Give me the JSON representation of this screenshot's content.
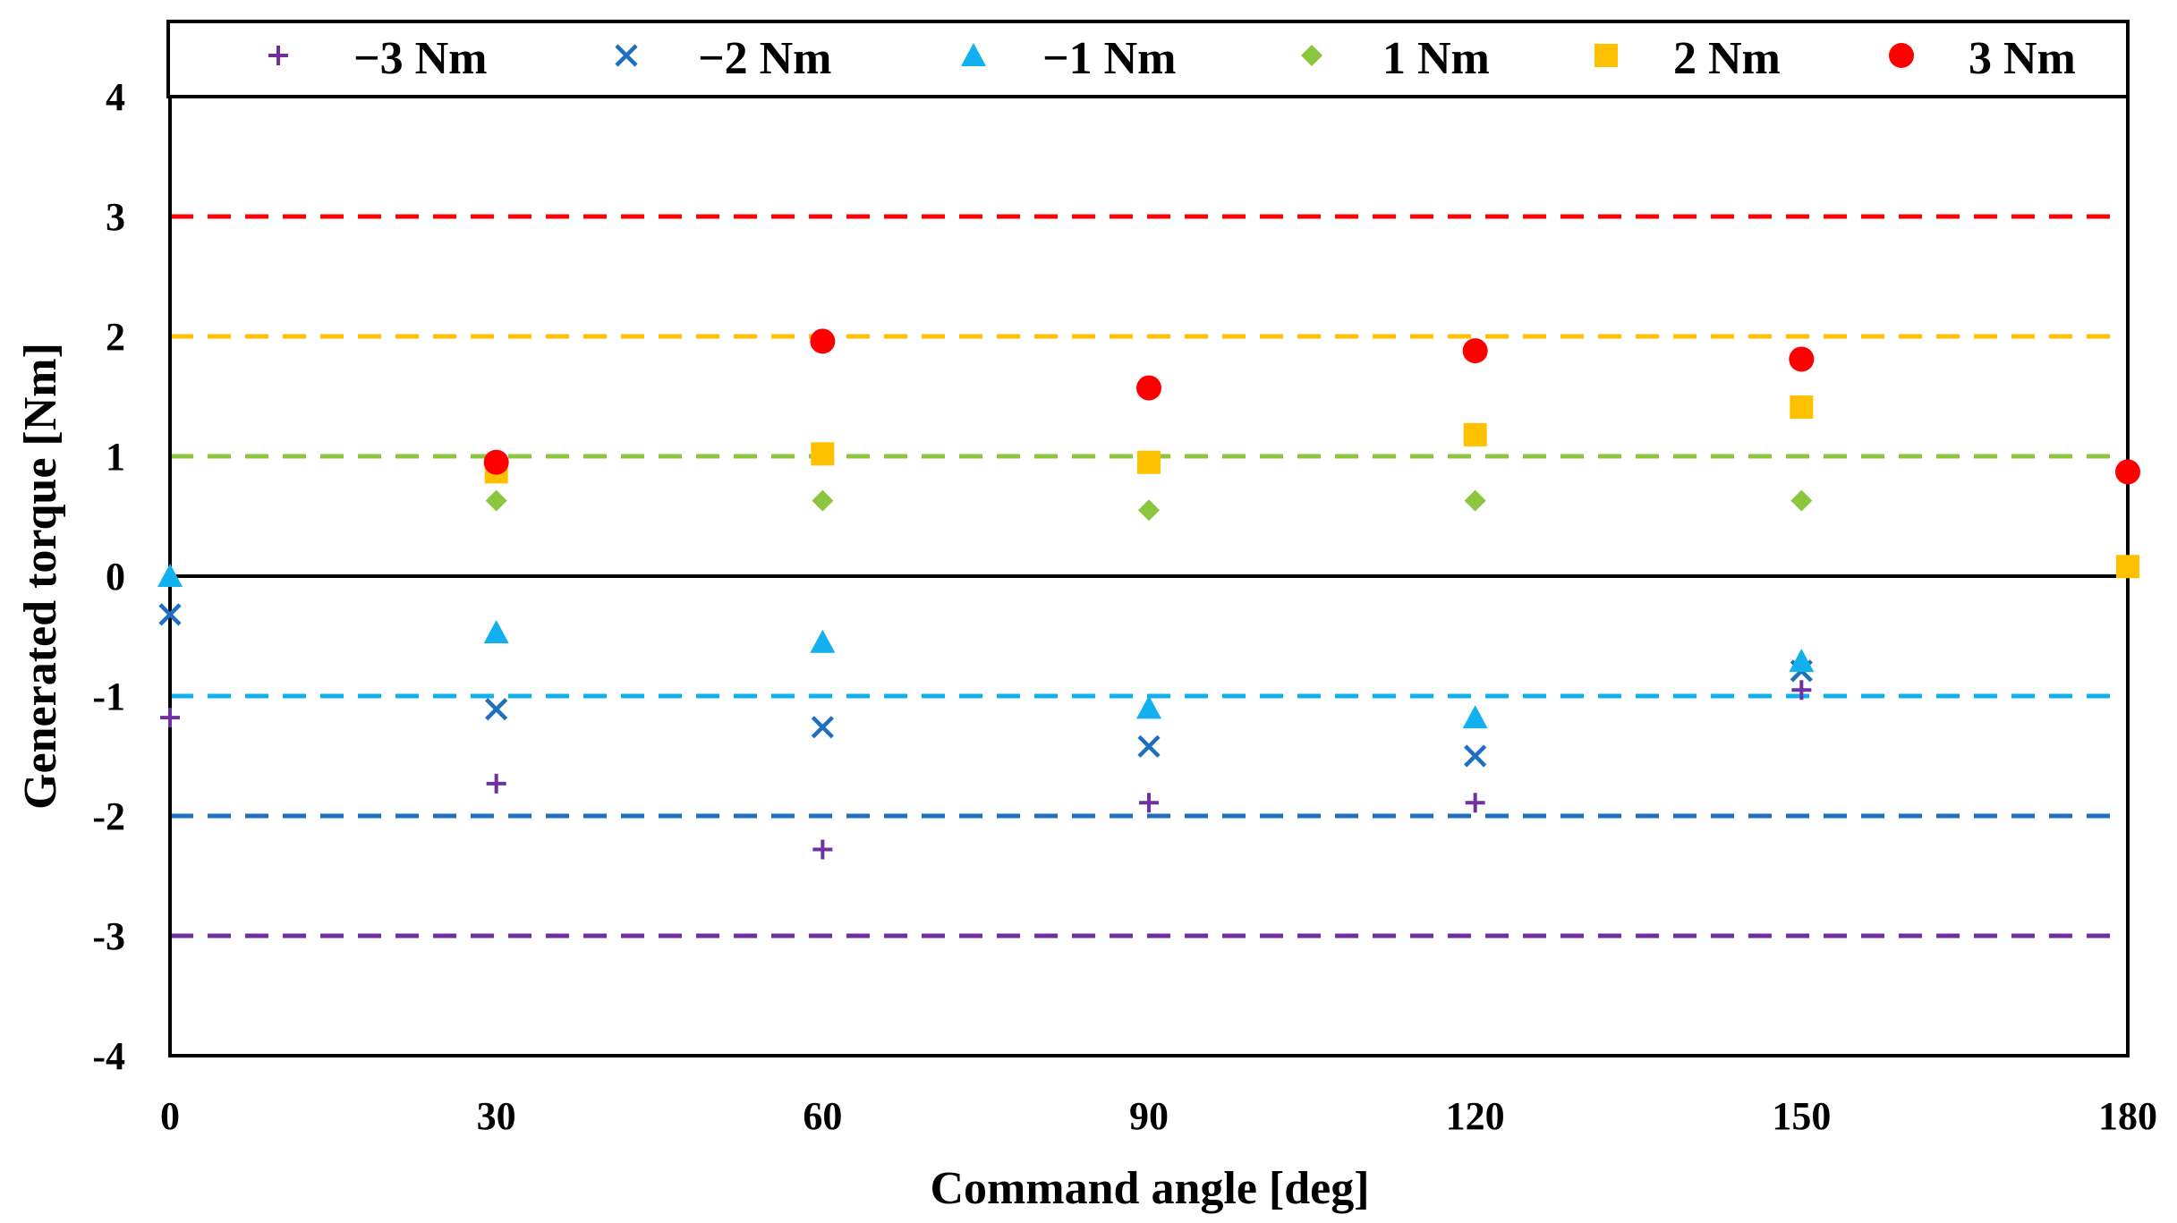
{
  "chart_data": {
    "type": "scatter",
    "title": "",
    "xlabel": "Command angle [deg]",
    "ylabel": "Generated torque [Nm]",
    "xlim": [
      0,
      180
    ],
    "ylim": [
      -4,
      4
    ],
    "x_ticks": [
      0,
      30,
      60,
      90,
      120,
      150,
      180
    ],
    "y_ticks": [
      4,
      3,
      2,
      1,
      0,
      -1,
      -2,
      -3,
      -4
    ],
    "x_tick_labels": [
      "0",
      "30",
      "60",
      "90",
      "120",
      "150",
      "180"
    ],
    "y_tick_labels": [
      "4",
      "3",
      "2",
      "1",
      "0",
      "-1",
      "-2",
      "-3",
      "-4"
    ],
    "legend_position": "top",
    "series": [
      {
        "name": "−3 Nm",
        "marker": "plus",
        "color": "#7030a0",
        "reference": -3,
        "x": [
          0,
          30,
          60,
          90,
          120,
          150
        ],
        "y": [
          -1.18,
          -1.73,
          -2.28,
          -1.89,
          -1.89,
          -0.95
        ]
      },
      {
        "name": "−2 Nm",
        "marker": "x",
        "color": "#1f6fbf",
        "reference": -2,
        "x": [
          0,
          30,
          60,
          90,
          120,
          150
        ],
        "y": [
          -0.32,
          -1.11,
          -1.26,
          -1.42,
          -1.5,
          -0.79
        ]
      },
      {
        "name": "−1 Nm",
        "marker": "triangle",
        "color": "#12b0ee",
        "reference": -1,
        "x": [
          0,
          30,
          60,
          90,
          120,
          150
        ],
        "y": [
          0.0,
          -0.47,
          -0.55,
          -1.1,
          -1.18,
          -0.71
        ]
      },
      {
        "name": "1 Nm",
        "marker": "diamond",
        "color": "#8cc63f",
        "reference": 1,
        "x": [
          30,
          60,
          90,
          120,
          150
        ],
        "y": [
          0.63,
          0.63,
          0.55,
          0.63,
          0.63
        ]
      },
      {
        "name": "2 Nm",
        "marker": "square",
        "color": "#ffc000",
        "reference": 2,
        "x": [
          30,
          60,
          90,
          120,
          150,
          180
        ],
        "y": [
          0.87,
          1.02,
          0.95,
          1.18,
          1.41,
          0.08
        ]
      },
      {
        "name": "3 Nm",
        "marker": "circle",
        "color": "#ff0000",
        "reference": 3,
        "x": [
          30,
          60,
          90,
          120,
          150,
          180
        ],
        "y": [
          0.95,
          1.96,
          1.57,
          1.88,
          1.81,
          0.87
        ]
      }
    ]
  }
}
